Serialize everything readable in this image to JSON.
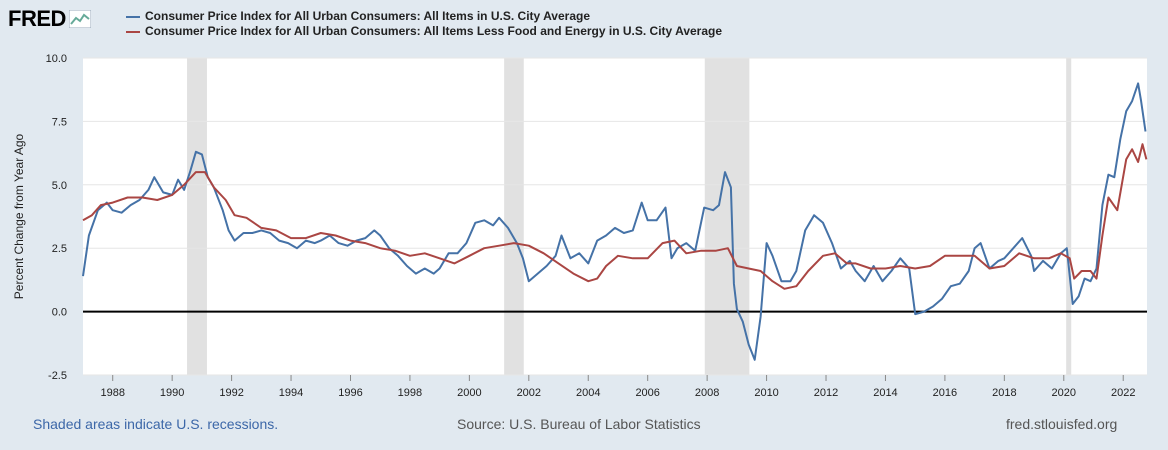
{
  "brand": {
    "logo": "FRED"
  },
  "legend": [
    {
      "label": "Consumer Price Index for All Urban Consumers: All Items in U.S. City Average",
      "color": "#4572a7"
    },
    {
      "label": "Consumer Price Index for All Urban Consumers: All Items Less Food and Energy in U.S. City Average",
      "color": "#aa4643"
    }
  ],
  "footer": {
    "left": "Shaded areas indicate U.S. recessions.",
    "source": "Source: U.S. Bureau of Labor Statistics",
    "site": "fred.stlouisfed.org"
  },
  "colors": {
    "background": "#e1e9f0",
    "plot": "#ffffff",
    "recession": "#e1e1e1",
    "zero_line": "#000000"
  },
  "chart_data": {
    "type": "line",
    "ylabel": "Percent Change from Year Ago",
    "xlim": [
      1987,
      2022.8
    ],
    "ylim": [
      -2.5,
      10
    ],
    "yticks": [
      "-2.5",
      "0.0",
      "2.5",
      "5.0",
      "7.5",
      "10.0"
    ],
    "xticks": [
      "1988",
      "1990",
      "1992",
      "1994",
      "1996",
      "1998",
      "2000",
      "2002",
      "2004",
      "2006",
      "2008",
      "2010",
      "2012",
      "2014",
      "2016",
      "2018",
      "2020",
      "2022"
    ],
    "recessions": [
      [
        1990.5,
        1991.17
      ],
      [
        2001.17,
        2001.83
      ],
      [
        2007.92,
        2009.42
      ],
      [
        2020.08,
        2020.25
      ]
    ],
    "series": [
      {
        "name": "Consumer Price Index for All Urban Consumers: All Items in U.S. City Average",
        "color": "#4572a7",
        "points": [
          [
            1987,
            1.4
          ],
          [
            1987.2,
            3.0
          ],
          [
            1987.5,
            4.0
          ],
          [
            1987.8,
            4.3
          ],
          [
            1988,
            4.0
          ],
          [
            1988.3,
            3.9
          ],
          [
            1988.6,
            4.2
          ],
          [
            1988.9,
            4.4
          ],
          [
            1989.2,
            4.8
          ],
          [
            1989.4,
            5.3
          ],
          [
            1989.7,
            4.7
          ],
          [
            1990,
            4.6
          ],
          [
            1990.2,
            5.2
          ],
          [
            1990.4,
            4.8
          ],
          [
            1990.6,
            5.5
          ],
          [
            1990.8,
            6.3
          ],
          [
            1991,
            6.2
          ],
          [
            1991.2,
            5.3
          ],
          [
            1991.4,
            4.9
          ],
          [
            1991.7,
            4.0
          ],
          [
            1991.9,
            3.2
          ],
          [
            1992.1,
            2.8
          ],
          [
            1992.4,
            3.1
          ],
          [
            1992.7,
            3.1
          ],
          [
            1993,
            3.2
          ],
          [
            1993.3,
            3.1
          ],
          [
            1993.6,
            2.8
          ],
          [
            1993.9,
            2.7
          ],
          [
            1994.2,
            2.5
          ],
          [
            1994.5,
            2.8
          ],
          [
            1994.8,
            2.7
          ],
          [
            1995,
            2.8
          ],
          [
            1995.3,
            3.0
          ],
          [
            1995.6,
            2.7
          ],
          [
            1995.9,
            2.6
          ],
          [
            1996.2,
            2.8
          ],
          [
            1996.5,
            2.9
          ],
          [
            1996.8,
            3.2
          ],
          [
            1997,
            3.0
          ],
          [
            1997.3,
            2.5
          ],
          [
            1997.6,
            2.2
          ],
          [
            1997.9,
            1.8
          ],
          [
            1998.2,
            1.5
          ],
          [
            1998.5,
            1.7
          ],
          [
            1998.8,
            1.5
          ],
          [
            1999,
            1.7
          ],
          [
            1999.3,
            2.3
          ],
          [
            1999.6,
            2.3
          ],
          [
            1999.9,
            2.7
          ],
          [
            2000.2,
            3.5
          ],
          [
            2000.5,
            3.6
          ],
          [
            2000.8,
            3.4
          ],
          [
            2001,
            3.7
          ],
          [
            2001.3,
            3.3
          ],
          [
            2001.6,
            2.7
          ],
          [
            2001.8,
            2.1
          ],
          [
            2002,
            1.2
          ],
          [
            2002.3,
            1.5
          ],
          [
            2002.6,
            1.8
          ],
          [
            2002.9,
            2.2
          ],
          [
            2003.1,
            3.0
          ],
          [
            2003.4,
            2.1
          ],
          [
            2003.7,
            2.3
          ],
          [
            2004,
            1.9
          ],
          [
            2004.3,
            2.8
          ],
          [
            2004.6,
            3.0
          ],
          [
            2004.9,
            3.3
          ],
          [
            2005.2,
            3.1
          ],
          [
            2005.5,
            3.2
          ],
          [
            2005.8,
            4.3
          ],
          [
            2006,
            3.6
          ],
          [
            2006.3,
            3.6
          ],
          [
            2006.6,
            4.1
          ],
          [
            2006.8,
            2.1
          ],
          [
            2007,
            2.5
          ],
          [
            2007.3,
            2.7
          ],
          [
            2007.6,
            2.4
          ],
          [
            2007.9,
            4.1
          ],
          [
            2008.2,
            4.0
          ],
          [
            2008.4,
            4.2
          ],
          [
            2008.6,
            5.5
          ],
          [
            2008.8,
            4.9
          ],
          [
            2008.9,
            1.1
          ],
          [
            2009,
            0.1
          ],
          [
            2009.2,
            -0.4
          ],
          [
            2009.4,
            -1.3
          ],
          [
            2009.6,
            -1.9
          ],
          [
            2009.8,
            -0.2
          ],
          [
            2010,
            2.7
          ],
          [
            2010.2,
            2.2
          ],
          [
            2010.5,
            1.2
          ],
          [
            2010.8,
            1.2
          ],
          [
            2011,
            1.6
          ],
          [
            2011.3,
            3.2
          ],
          [
            2011.6,
            3.8
          ],
          [
            2011.9,
            3.5
          ],
          [
            2012.2,
            2.7
          ],
          [
            2012.5,
            1.7
          ],
          [
            2012.8,
            2.0
          ],
          [
            2013,
            1.6
          ],
          [
            2013.3,
            1.2
          ],
          [
            2013.6,
            1.8
          ],
          [
            2013.9,
            1.2
          ],
          [
            2014.2,
            1.6
          ],
          [
            2014.5,
            2.1
          ],
          [
            2014.8,
            1.7
          ],
          [
            2015,
            -0.1
          ],
          [
            2015.3,
            0.0
          ],
          [
            2015.6,
            0.2
          ],
          [
            2015.9,
            0.5
          ],
          [
            2016.2,
            1.0
          ],
          [
            2016.5,
            1.1
          ],
          [
            2016.8,
            1.6
          ],
          [
            2017,
            2.5
          ],
          [
            2017.2,
            2.7
          ],
          [
            2017.5,
            1.7
          ],
          [
            2017.8,
            2.0
          ],
          [
            2018,
            2.1
          ],
          [
            2018.3,
            2.5
          ],
          [
            2018.6,
            2.9
          ],
          [
            2018.9,
            2.2
          ],
          [
            2019,
            1.6
          ],
          [
            2019.3,
            2.0
          ],
          [
            2019.6,
            1.7
          ],
          [
            2019.9,
            2.3
          ],
          [
            2020.1,
            2.5
          ],
          [
            2020.3,
            0.3
          ],
          [
            2020.5,
            0.6
          ],
          [
            2020.7,
            1.3
          ],
          [
            2020.9,
            1.2
          ],
          [
            2021.1,
            1.7
          ],
          [
            2021.3,
            4.2
          ],
          [
            2021.5,
            5.4
          ],
          [
            2021.7,
            5.3
          ],
          [
            2021.9,
            6.8
          ],
          [
            2022.1,
            7.9
          ],
          [
            2022.3,
            8.3
          ],
          [
            2022.5,
            9.0
          ],
          [
            2022.6,
            8.3
          ],
          [
            2022.75,
            7.1
          ]
        ]
      },
      {
        "name": "Consumer Price Index for All Urban Consumers: All Items Less Food and Energy in U.S. City Average",
        "color": "#aa4643",
        "points": [
          [
            1987,
            3.6
          ],
          [
            1987.3,
            3.8
          ],
          [
            1987.6,
            4.2
          ],
          [
            1988,
            4.3
          ],
          [
            1988.5,
            4.5
          ],
          [
            1989,
            4.5
          ],
          [
            1989.5,
            4.4
          ],
          [
            1990,
            4.6
          ],
          [
            1990.4,
            5.0
          ],
          [
            1990.8,
            5.5
          ],
          [
            1991.1,
            5.5
          ],
          [
            1991.4,
            4.9
          ],
          [
            1991.8,
            4.4
          ],
          [
            1992.1,
            3.8
          ],
          [
            1992.5,
            3.7
          ],
          [
            1993,
            3.3
          ],
          [
            1993.5,
            3.2
          ],
          [
            1994,
            2.9
          ],
          [
            1994.5,
            2.9
          ],
          [
            1995,
            3.1
          ],
          [
            1995.5,
            3.0
          ],
          [
            1996,
            2.8
          ],
          [
            1996.5,
            2.7
          ],
          [
            1997,
            2.5
          ],
          [
            1997.5,
            2.4
          ],
          [
            1998,
            2.2
          ],
          [
            1998.5,
            2.3
          ],
          [
            1999,
            2.1
          ],
          [
            1999.5,
            1.9
          ],
          [
            2000,
            2.2
          ],
          [
            2000.5,
            2.5
          ],
          [
            2001,
            2.6
          ],
          [
            2001.5,
            2.7
          ],
          [
            2002,
            2.6
          ],
          [
            2002.5,
            2.3
          ],
          [
            2003,
            1.9
          ],
          [
            2003.5,
            1.5
          ],
          [
            2004,
            1.2
          ],
          [
            2004.3,
            1.3
          ],
          [
            2004.6,
            1.8
          ],
          [
            2005,
            2.2
          ],
          [
            2005.5,
            2.1
          ],
          [
            2006,
            2.1
          ],
          [
            2006.5,
            2.7
          ],
          [
            2006.9,
            2.8
          ],
          [
            2007.3,
            2.3
          ],
          [
            2007.8,
            2.4
          ],
          [
            2008.3,
            2.4
          ],
          [
            2008.7,
            2.5
          ],
          [
            2009,
            1.8
          ],
          [
            2009.4,
            1.7
          ],
          [
            2009.8,
            1.6
          ],
          [
            2010.2,
            1.2
          ],
          [
            2010.6,
            0.9
          ],
          [
            2011,
            1.0
          ],
          [
            2011.4,
            1.6
          ],
          [
            2011.9,
            2.2
          ],
          [
            2012.3,
            2.3
          ],
          [
            2012.7,
            1.9
          ],
          [
            2013,
            1.9
          ],
          [
            2013.5,
            1.7
          ],
          [
            2014,
            1.7
          ],
          [
            2014.5,
            1.8
          ],
          [
            2015,
            1.7
          ],
          [
            2015.5,
            1.8
          ],
          [
            2016,
            2.2
          ],
          [
            2016.5,
            2.2
          ],
          [
            2017,
            2.2
          ],
          [
            2017.5,
            1.7
          ],
          [
            2018,
            1.8
          ],
          [
            2018.5,
            2.3
          ],
          [
            2019,
            2.1
          ],
          [
            2019.5,
            2.1
          ],
          [
            2019.9,
            2.3
          ],
          [
            2020.2,
            2.1
          ],
          [
            2020.35,
            1.3
          ],
          [
            2020.6,
            1.6
          ],
          [
            2020.9,
            1.6
          ],
          [
            2021.1,
            1.3
          ],
          [
            2021.3,
            3.0
          ],
          [
            2021.5,
            4.5
          ],
          [
            2021.8,
            4.0
          ],
          [
            2022.1,
            6.0
          ],
          [
            2022.3,
            6.4
          ],
          [
            2022.5,
            5.9
          ],
          [
            2022.65,
            6.6
          ],
          [
            2022.78,
            6.0
          ]
        ]
      }
    ]
  }
}
